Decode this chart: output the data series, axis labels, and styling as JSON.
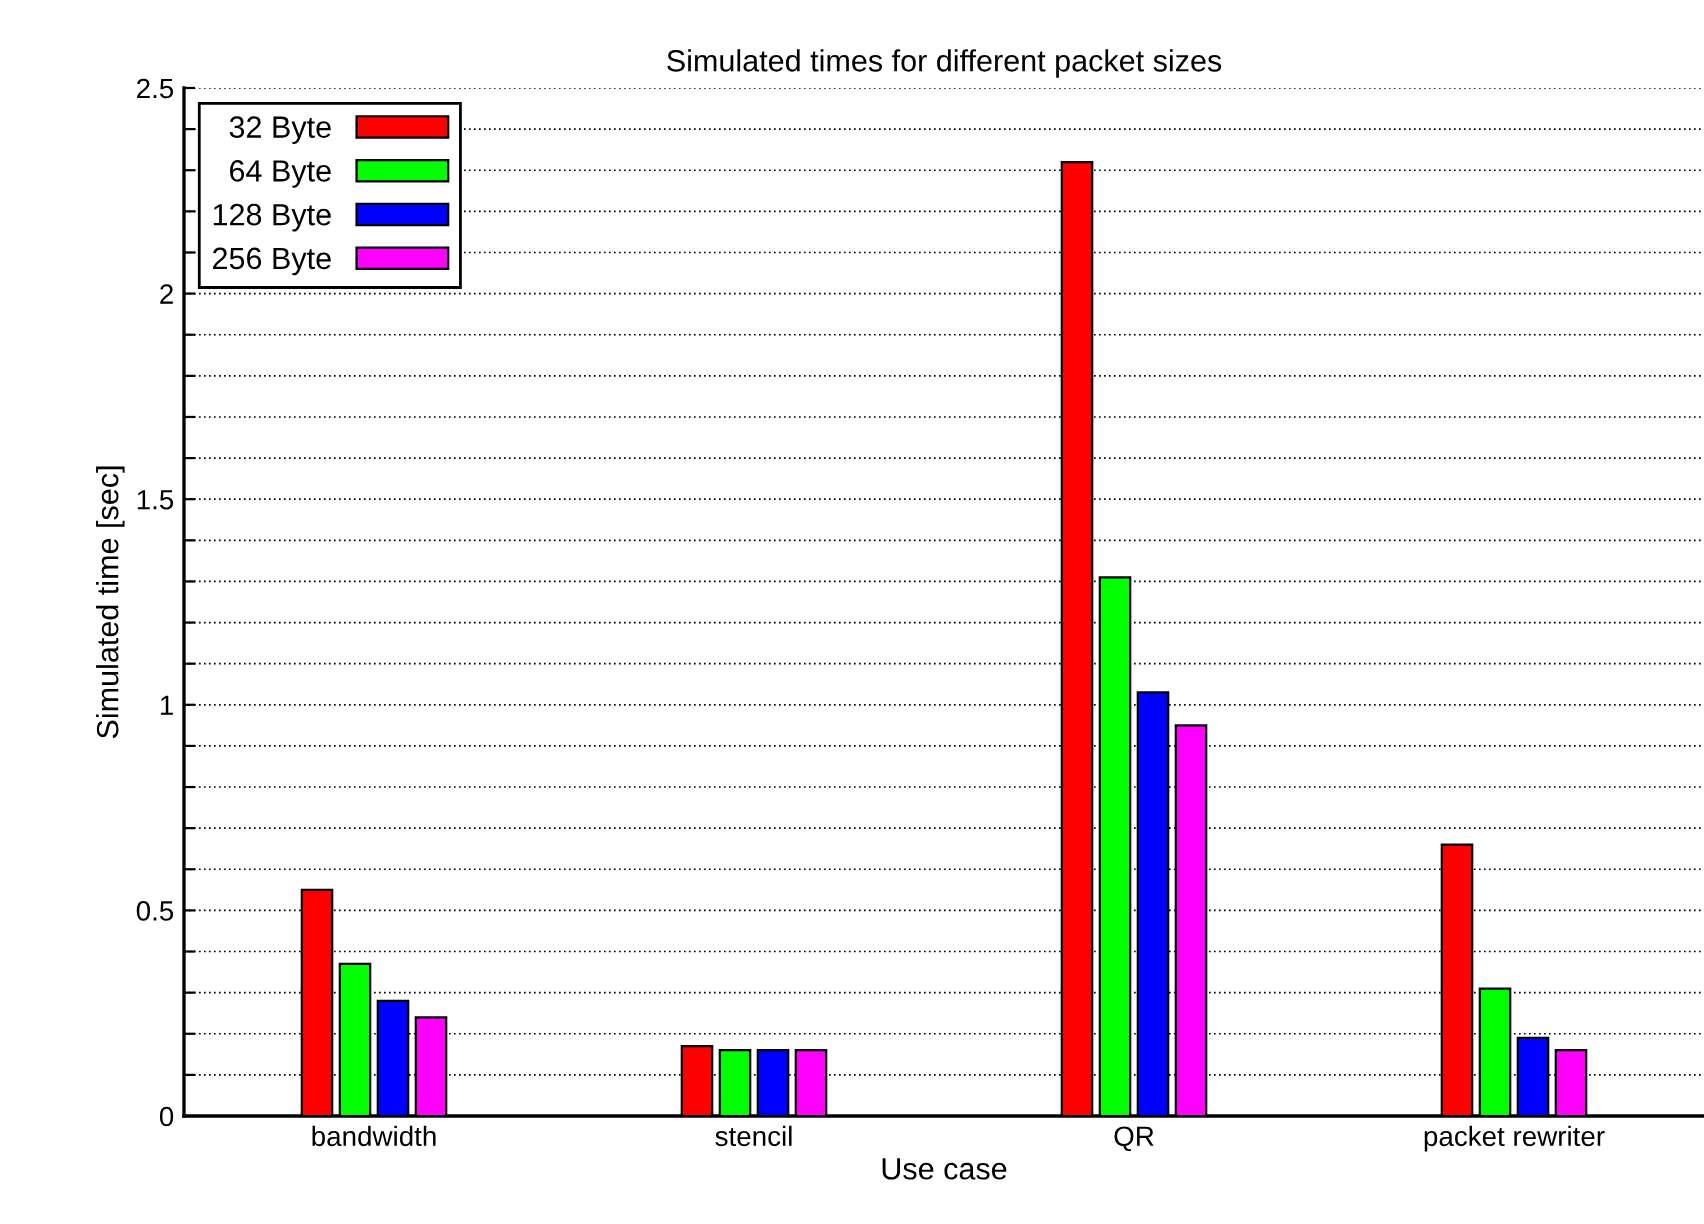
{
  "chart_data": {
    "type": "bar",
    "title": "Simulated times for different packet sizes",
    "xlabel": "Use case",
    "ylabel": "Simulated time [sec]",
    "categories": [
      "bandwidth",
      "stencil",
      "QR",
      "packet rewriter"
    ],
    "series": [
      {
        "name": "32 Byte",
        "color": "#ff0000",
        "values": [
          0.55,
          0.17,
          2.32,
          0.66
        ]
      },
      {
        "name": "64 Byte",
        "color": "#00ff00",
        "values": [
          0.37,
          0.16,
          1.31,
          0.31
        ]
      },
      {
        "name": "128 Byte",
        "color": "#0000ff",
        "values": [
          0.28,
          0.16,
          1.03,
          0.19
        ]
      },
      {
        "name": "256 Byte",
        "color": "#ff00ff",
        "values": [
          0.24,
          0.16,
          0.95,
          0.16
        ]
      }
    ],
    "ylim": [
      0,
      2.5
    ],
    "yticks": [
      0,
      {
        "value": 0.1,
        "label": null
      },
      {
        "value": 0.2,
        "label": null
      },
      {
        "value": 0.3,
        "label": null
      },
      {
        "value": 0.4,
        "label": null
      },
      0.5,
      {
        "value": 0.6,
        "label": null
      },
      {
        "value": 0.7,
        "label": null
      },
      {
        "value": 0.8,
        "label": null
      },
      {
        "value": 0.9,
        "label": null
      },
      1,
      {
        "value": 1.1,
        "label": null
      },
      {
        "value": 1.2,
        "label": null
      },
      {
        "value": 1.3,
        "label": null
      },
      {
        "value": 1.4,
        "label": null
      },
      1.5,
      {
        "value": 1.6,
        "label": null
      },
      {
        "value": 1.7,
        "label": null
      },
      {
        "value": 1.8,
        "label": null
      },
      {
        "value": 1.9,
        "label": null
      },
      2,
      {
        "value": 2.1,
        "label": null
      },
      {
        "value": 2.2,
        "label": null
      },
      {
        "value": 2.3,
        "label": null
      },
      {
        "value": 2.4,
        "label": null
      },
      2.5
    ],
    "grid": "y",
    "legend": "top left"
  }
}
